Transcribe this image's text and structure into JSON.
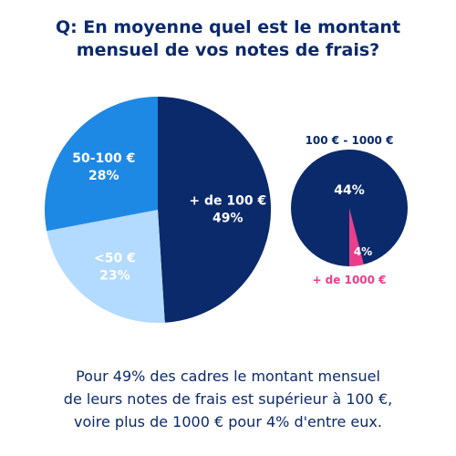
{
  "title": {
    "line1": "Q: En moyenne quel est le montant",
    "line2": "mensuel de vos notes de frais?"
  },
  "chart_data": [
    {
      "type": "pie",
      "slices": [
        {
          "label": "+ de 100 €",
          "value": 49,
          "value_label": "49%",
          "color": "#0b2a6b",
          "text_color": "#ffffff"
        },
        {
          "label": "<50 €",
          "value": 23,
          "value_label": "23%",
          "color": "#b3daff",
          "text_color": "#ffffff"
        },
        {
          "label": "50-100 €",
          "value": 28,
          "value_label": "28%",
          "color": "#1e88e5",
          "text_color": "#ffffff"
        }
      ]
    },
    {
      "type": "pie",
      "title": "100 € - 1000 €",
      "slices": [
        {
          "label": "100 € - 1000 €",
          "value": 44,
          "value_label": "44%",
          "color": "#0b2a6b",
          "text_color": "#ffffff"
        },
        {
          "label": "+ de 1000 €",
          "value": 4,
          "value_label": "4%",
          "color": "#e83e8c",
          "text_color": "#ffffff"
        }
      ],
      "highlight_label": "+ de 1000 €",
      "highlight_color": "#e83e8c"
    }
  ],
  "caption": {
    "line1": "Pour 49% des cadres le montant mensuel",
    "line2": "de leurs notes de frais est supérieur à 100 €,",
    "line3": "voire plus de 1000 € pour 4% d'entre eux."
  },
  "colors": {
    "title": "#0b2a6b",
    "caption": "#0b2a6b"
  }
}
